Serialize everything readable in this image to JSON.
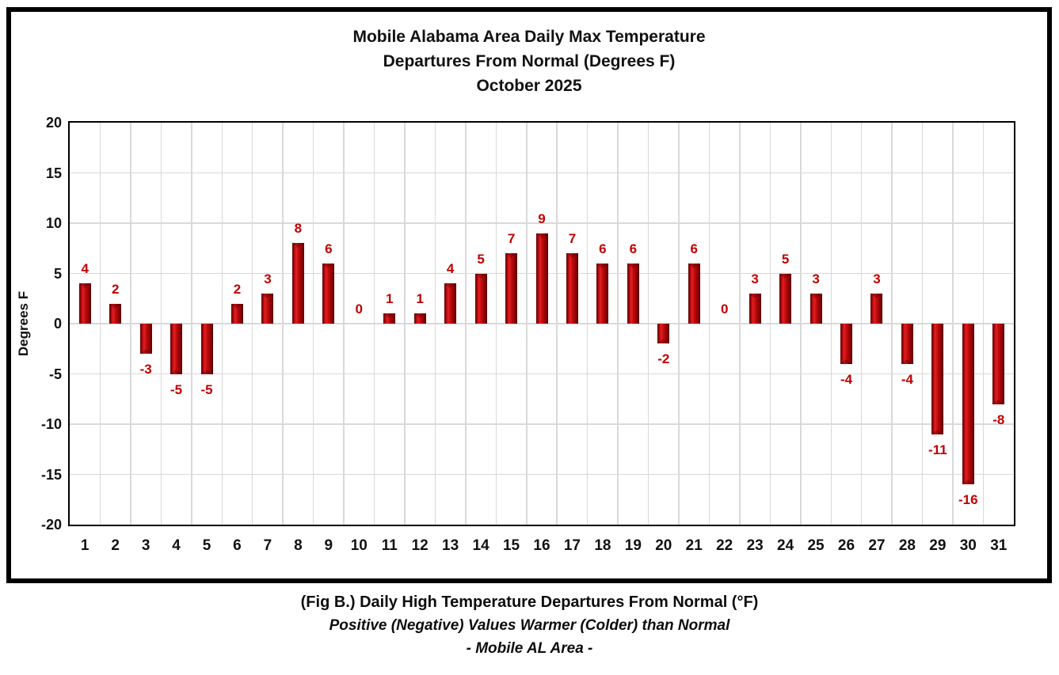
{
  "chart_data": {
    "type": "bar",
    "title_lines": [
      "Mobile Alabama Area Daily Max Temperature",
      "Departures From Normal (Degrees F)",
      "October 2025"
    ],
    "ylabel": "Degrees F",
    "categories": [
      "1",
      "2",
      "3",
      "4",
      "5",
      "6",
      "7",
      "8",
      "9",
      "10",
      "11",
      "12",
      "13",
      "14",
      "15",
      "16",
      "17",
      "18",
      "19",
      "20",
      "21",
      "22",
      "23",
      "24",
      "25",
      "26",
      "27",
      "28",
      "29",
      "30",
      "31"
    ],
    "values": [
      4,
      2,
      -3,
      -5,
      -5,
      2,
      3,
      8,
      6,
      0,
      1,
      1,
      4,
      5,
      7,
      9,
      7,
      6,
      6,
      -2,
      6,
      0,
      3,
      5,
      3,
      -4,
      3,
      -4,
      -11,
      -16,
      -8
    ],
    "ylim": [
      -20,
      20
    ],
    "yticks": [
      "20",
      "15",
      "10",
      "5",
      "0",
      "-5",
      "-10",
      "-15",
      "-20"
    ],
    "grid": true,
    "legend": "none",
    "bar_color": "#c00000",
    "label_color": "#c00000",
    "gridline_color": "#d9d9d9"
  },
  "caption": {
    "line1": "(Fig B.) Daily High Temperature Departures From Normal (°F)",
    "line2": "Positive (Negative) Values Warmer (Colder) than Normal",
    "line3": "- Mobile AL Area -"
  }
}
